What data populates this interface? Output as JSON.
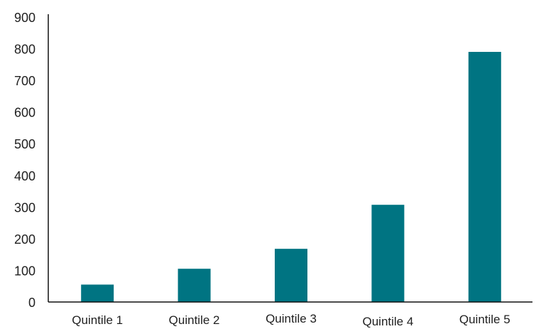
{
  "chart_data": {
    "type": "bar",
    "categories": [
      "Quintile 1",
      "Quintile 2",
      "Quintile 3",
      "Quintile 4",
      "Quintile 5"
    ],
    "values": [
      55,
      105,
      168,
      307,
      790
    ],
    "title": "",
    "xlabel": "",
    "ylabel": "",
    "ylim": [
      0,
      900
    ],
    "yticks": [
      "0",
      "100",
      "200",
      "300",
      "400",
      "500",
      "600",
      "700",
      "800",
      "900"
    ],
    "grid": false,
    "legend": "none",
    "colors": {
      "bar": "#007482",
      "axis": "#111111",
      "text": "#1f1f1f"
    }
  }
}
